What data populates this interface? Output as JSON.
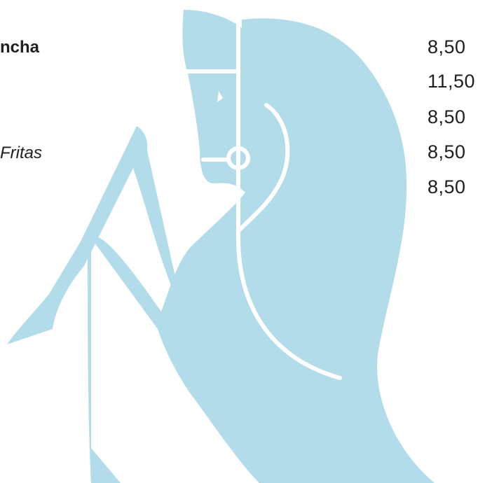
{
  "logo": {
    "icon": "horse-head-logo-icon",
    "color": "#b3dcea"
  },
  "menu": {
    "items": [
      {
        "name": "ncha",
        "price": "8,50"
      },
      {
        "name": "",
        "price": "11,50"
      },
      {
        "name": "",
        "price": "8,50"
      },
      {
        "name": "Fritas",
        "price": "8,50"
      },
      {
        "name": "",
        "price": "8,50"
      }
    ]
  }
}
